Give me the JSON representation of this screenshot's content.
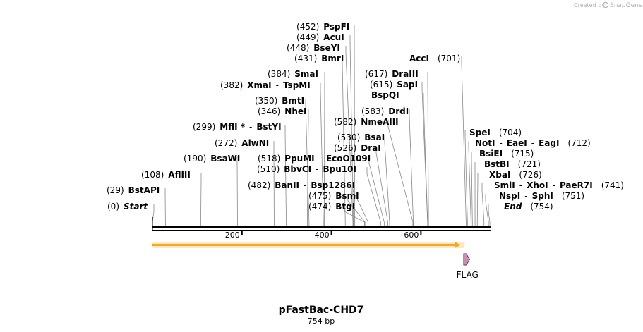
{
  "credit": {
    "text": "Created by",
    "brand": "SnapGene"
  },
  "map": {
    "name": "pFastBac-CHD7",
    "length_label": "754 bp",
    "length": 754,
    "ticks": [
      {
        "pos": 200,
        "label": "200"
      },
      {
        "pos": 400,
        "label": "400"
      },
      {
        "pos": 600,
        "label": "600"
      }
    ],
    "features": [
      {
        "name": "",
        "start": 1,
        "end": 693,
        "type": "orf",
        "color": "#f5a623"
      },
      {
        "name": "FLAG",
        "start": 694,
        "end": 717,
        "type": "tag",
        "color": "#c98fb0"
      }
    ],
    "sites": [
      {
        "pos": 0,
        "coord": "(0)",
        "names": [
          "Start"
        ],
        "style": "italic"
      },
      {
        "pos": 29,
        "coord": "(29)",
        "names": [
          "BstAPI"
        ]
      },
      {
        "pos": 108,
        "coord": "(108)",
        "names": [
          "AflIII"
        ]
      },
      {
        "pos": 190,
        "coord": "(190)",
        "names": [
          "BsaWI"
        ]
      },
      {
        "pos": 272,
        "coord": "(272)",
        "names": [
          "AlwNI"
        ]
      },
      {
        "pos": 299,
        "coord": "(299)",
        "names": [
          "MflI *",
          "BstYI"
        ]
      },
      {
        "pos": 346,
        "coord": "(346)",
        "names": [
          "NheI"
        ]
      },
      {
        "pos": 350,
        "coord": "(350)",
        "names": [
          "BmtI"
        ]
      },
      {
        "pos": 382,
        "coord": "(382)",
        "names": [
          "XmaI",
          "TspMI"
        ]
      },
      {
        "pos": 384,
        "coord": "(384)",
        "names": [
          "SmaI"
        ]
      },
      {
        "pos": 431,
        "coord": "(431)",
        "names": [
          "BmrI"
        ]
      },
      {
        "pos": 448,
        "coord": "(448)",
        "names": [
          "BseYI"
        ]
      },
      {
        "pos": 449,
        "coord": "(449)",
        "names": [
          "AcuI"
        ]
      },
      {
        "pos": 452,
        "coord": "(452)",
        "names": [
          "PspFI"
        ]
      },
      {
        "pos": 474,
        "coord": "(474)",
        "names": [
          "BtgI"
        ]
      },
      {
        "pos": 475,
        "coord": "(475)",
        "names": [
          "BsmI"
        ]
      },
      {
        "pos": 482,
        "coord": "(482)",
        "names": [
          "BanII",
          "Bsp1286I"
        ]
      },
      {
        "pos": 510,
        "coord": "(510)",
        "names": [
          "BbvCI",
          "Bpu10I"
        ]
      },
      {
        "pos": 518,
        "coord": "(518)",
        "names": [
          "PpuMI",
          "EcoO109I"
        ]
      },
      {
        "pos": 526,
        "coord": "(526)",
        "names": [
          "DraI"
        ]
      },
      {
        "pos": 530,
        "coord": "(530)",
        "names": [
          "BsaI"
        ]
      },
      {
        "pos": 582,
        "coord": "(582)",
        "names": [
          "NmeAIII"
        ]
      },
      {
        "pos": 583,
        "coord": "(583)",
        "names": [
          "DrdI"
        ]
      },
      {
        "pos": 615,
        "coord": "(615)",
        "names": [
          "SapI"
        ]
      },
      {
        "pos": 615,
        "coord": "",
        "names": [
          "BspQI"
        ]
      },
      {
        "pos": 617,
        "coord": "(617)",
        "names": [
          "DraIII"
        ]
      },
      {
        "pos": 701,
        "coord": "(701)",
        "names": [
          "AccI"
        ]
      },
      {
        "pos": 704,
        "coord": "(704)",
        "names": [
          "SpeI"
        ]
      },
      {
        "pos": 712,
        "coord": "(712)",
        "names": [
          "NotI",
          "EaeI",
          "EagI"
        ]
      },
      {
        "pos": 715,
        "coord": "(715)",
        "names": [
          "BsiEI"
        ]
      },
      {
        "pos": 721,
        "coord": "(721)",
        "names": [
          "BstBI"
        ]
      },
      {
        "pos": 726,
        "coord": "(726)",
        "names": [
          "XbaI"
        ]
      },
      {
        "pos": 741,
        "coord": "(741)",
        "names": [
          "SmlI",
          "XhoI",
          "PaeR7I"
        ]
      },
      {
        "pos": 751,
        "coord": "(751)",
        "names": [
          "NspI",
          "SphI"
        ]
      },
      {
        "pos": 754,
        "coord": "(754)",
        "names": [
          "End"
        ],
        "style": "italic"
      }
    ]
  }
}
